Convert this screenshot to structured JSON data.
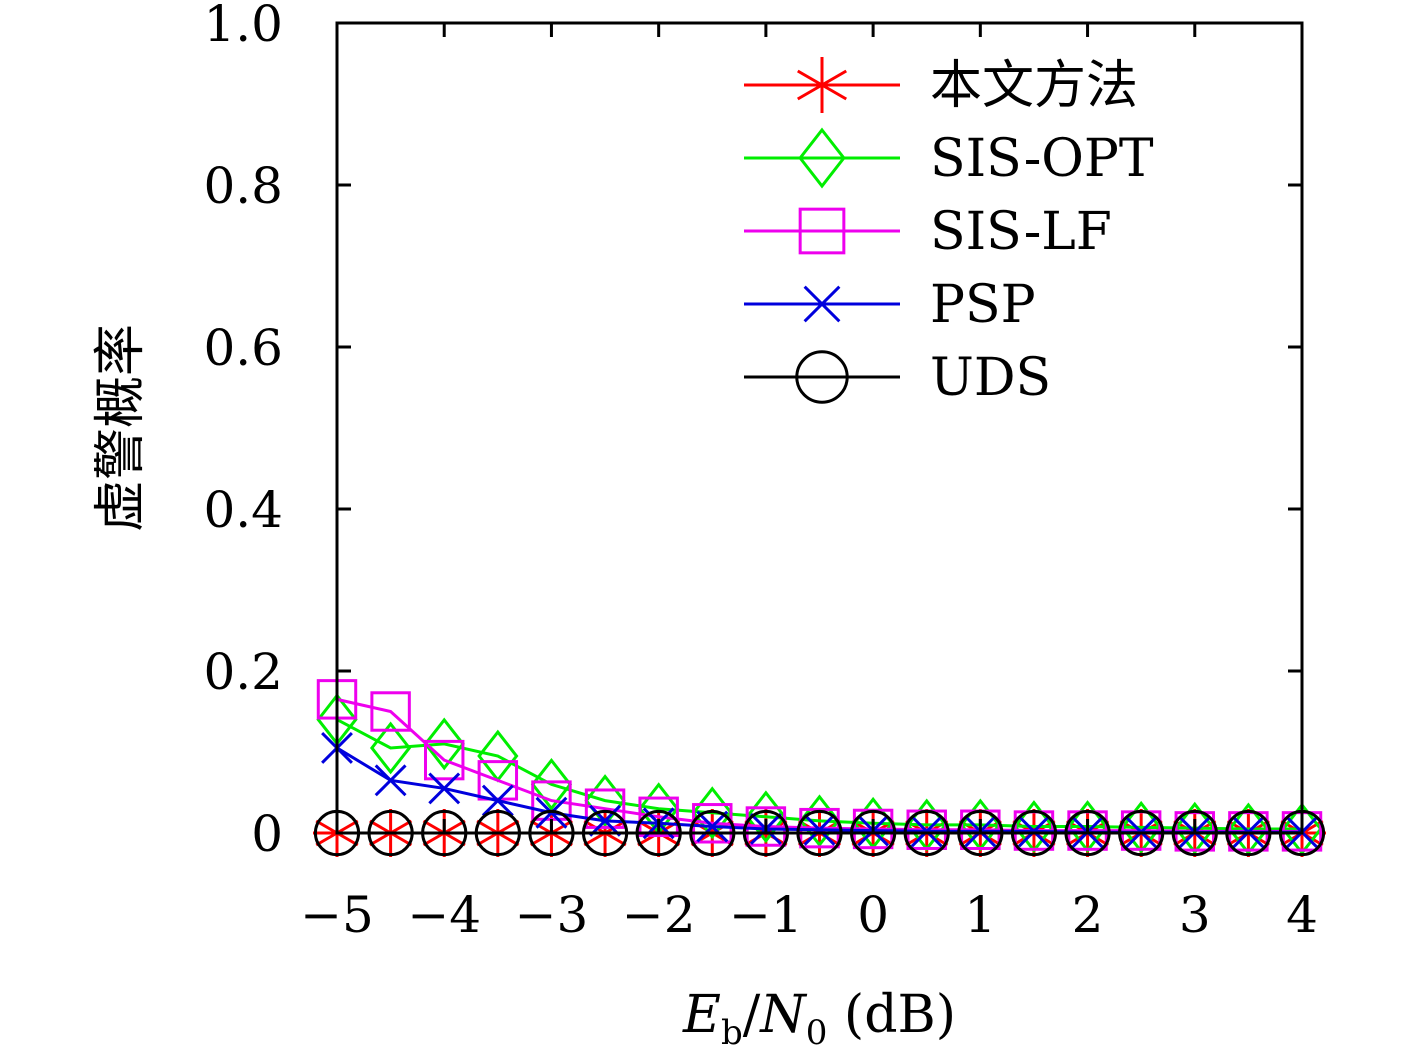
{
  "chart_data": {
    "type": "line",
    "title": "",
    "xlabel": "Eb/N0 (dB)",
    "xlabel_parts": {
      "E": "E",
      "sub_b": "b",
      "slash": "/",
      "N": "N",
      "sub_0": "0",
      "unit": " (dB)"
    },
    "ylabel": "虚警概率",
    "xlim": [
      -5,
      4
    ],
    "ylim": [
      0,
      1.0
    ],
    "x_ticks": [
      -5,
      -4,
      -3,
      -2,
      -1,
      0,
      1,
      2,
      3,
      4
    ],
    "x_tick_labels": [
      "−5",
      "−4",
      "−3",
      "−2",
      "−1",
      "0",
      "1",
      "2",
      "3",
      "4"
    ],
    "y_ticks": [
      0,
      0.2,
      0.4,
      0.6,
      0.8,
      1.0
    ],
    "y_tick_labels": [
      "0",
      "0.2",
      "0.4",
      "0.6",
      "0.8",
      "1.0"
    ],
    "grid": false,
    "legend_position": "top-right",
    "x": [
      -5,
      -4.5,
      -4,
      -3.5,
      -3,
      -2.5,
      -2,
      -1.5,
      -1,
      -0.5,
      0,
      0.5,
      1,
      1.5,
      2,
      2.5,
      3,
      3.5,
      4
    ],
    "series": [
      {
        "name": "本文方法",
        "color": "#ff0000",
        "marker": "asterisk",
        "values": [
          0,
          0,
          0,
          0,
          0,
          0,
          0,
          0,
          0,
          0,
          0,
          0,
          0,
          0,
          0,
          0,
          0,
          0,
          0
        ]
      },
      {
        "name": "SIS-OPT",
        "color": "#00ee00",
        "marker": "diamond",
        "values": [
          0.14,
          0.105,
          0.11,
          0.095,
          0.06,
          0.04,
          0.03,
          0.025,
          0.02,
          0.015,
          0.012,
          0.01,
          0.01,
          0.008,
          0.008,
          0.007,
          0.006,
          0.005,
          0.005
        ]
      },
      {
        "name": "SIS-LF",
        "color": "#ee00ee",
        "marker": "square",
        "values": [
          0.165,
          0.15,
          0.09,
          0.065,
          0.04,
          0.03,
          0.02,
          0.012,
          0.008,
          0.006,
          0.005,
          0.004,
          0.004,
          0.003,
          0.003,
          0.003,
          0.002,
          0.002,
          0.002
        ]
      },
      {
        "name": "PSP",
        "color": "#0000dd",
        "marker": "x",
        "values": [
          0.105,
          0.065,
          0.055,
          0.04,
          0.025,
          0.015,
          0.012,
          0.008,
          0.005,
          0.004,
          0.003,
          0.002,
          0.002,
          0.002,
          0.001,
          0.001,
          0.001,
          0.001,
          0.001
        ]
      },
      {
        "name": "UDS",
        "color": "#000000",
        "marker": "circle",
        "values": [
          0,
          0,
          0,
          0,
          0,
          0,
          0,
          0,
          0,
          0,
          0,
          0,
          0,
          0,
          0,
          0,
          0,
          0,
          0
        ]
      }
    ]
  }
}
